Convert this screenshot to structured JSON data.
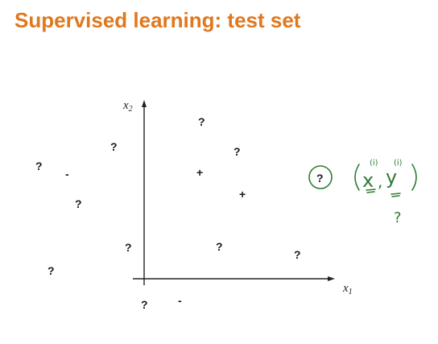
{
  "title": "Supervised learning: test set",
  "plot": {
    "x_axis_label": "x",
    "x_axis_sub": "1",
    "y_axis_label": "x",
    "y_axis_sub": "2",
    "symbols": [
      {
        "text": "?",
        "name": "unknown-point"
      },
      {
        "text": "?",
        "name": "unknown-point"
      },
      {
        "text": "?",
        "name": "unknown-point"
      },
      {
        "text": "-",
        "name": "negative-point"
      },
      {
        "text": "?",
        "name": "unknown-point"
      },
      {
        "text": "?",
        "name": "unknown-point"
      },
      {
        "text": "?",
        "name": "unknown-point"
      },
      {
        "text": "?",
        "name": "unknown-point"
      },
      {
        "text": "+",
        "name": "positive-point"
      },
      {
        "text": "+",
        "name": "positive-point"
      },
      {
        "text": "?",
        "name": "unknown-point"
      },
      {
        "text": "?",
        "name": "unknown-point"
      },
      {
        "text": "?",
        "name": "unknown-point"
      },
      {
        "text": "-",
        "name": "negative-point"
      }
    ]
  },
  "annotation": {
    "circled": "?",
    "x_text": "x",
    "y_text": "y",
    "sup_x": "(i)",
    "sup_y": "(i)",
    "below": "?"
  },
  "colors": {
    "title": "#e0781e",
    "ink": "#2e7d32",
    "symbol": "#1a1a1a"
  }
}
